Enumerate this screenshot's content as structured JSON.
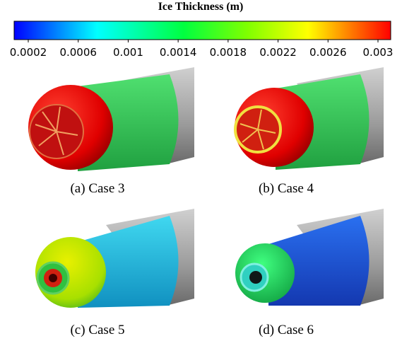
{
  "colorbar": {
    "title": "Ice Thickness (m)",
    "ticks": [
      0.0002,
      0.0006,
      0.001,
      0.0014,
      0.0018,
      0.0022,
      0.0026,
      0.003
    ]
  },
  "panels": [
    {
      "caption": "(a) Case 3"
    },
    {
      "caption": "(b) Case 4"
    },
    {
      "caption": "(c) Case 5"
    },
    {
      "caption": "(d) Case 6"
    }
  ]
}
